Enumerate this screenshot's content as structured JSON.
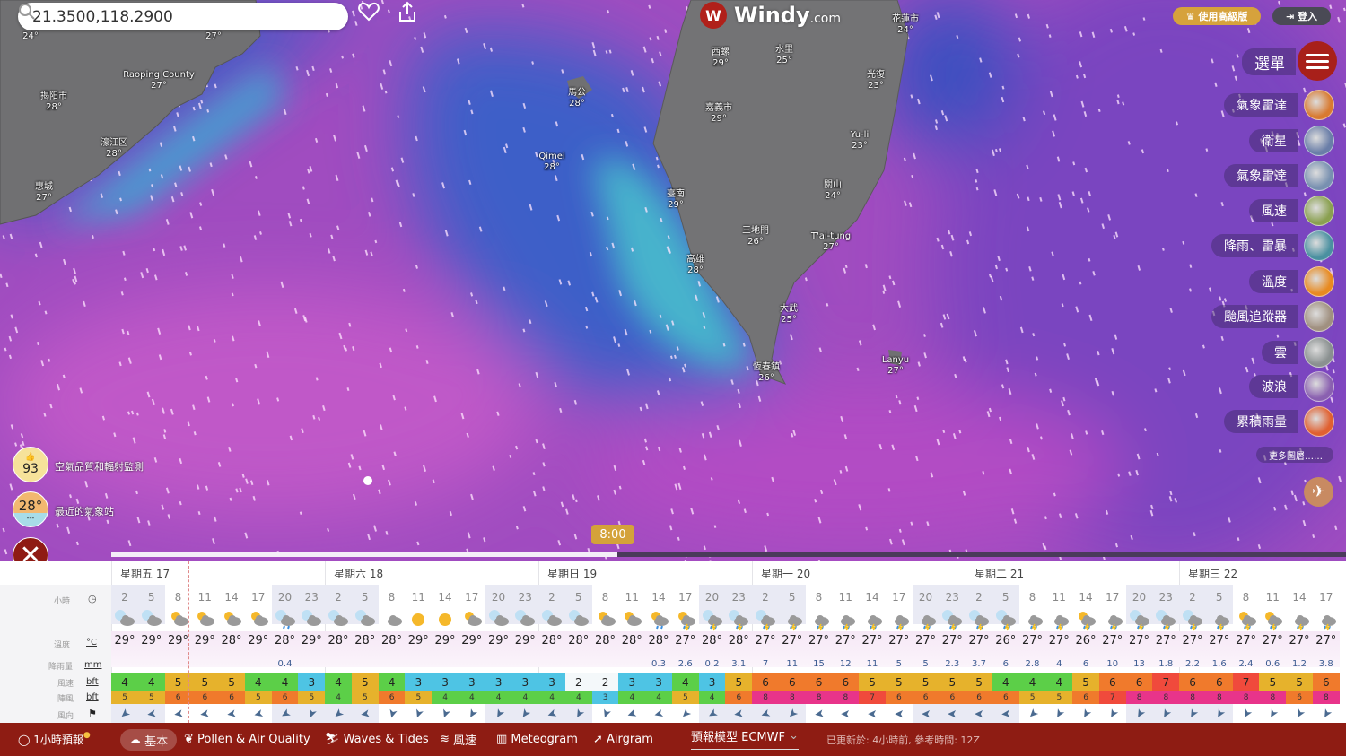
{
  "search": {
    "value": "21.3500,118.2900"
  },
  "logo": {
    "name": "Windy",
    "suffix": "com"
  },
  "header": {
    "premium_label": "使用高級版",
    "login_label": "登入"
  },
  "menu": {
    "title": "選單",
    "more_layers": "更多圖層……",
    "items": [
      {
        "label": "氣象雷達",
        "thumb": "#d87a30"
      },
      {
        "label": "衛星",
        "thumb": "#6a7ea8"
      },
      {
        "label": "氣象雷達",
        "thumb": "#7890b0"
      },
      {
        "label": "風速",
        "thumb": "#8aa050"
      },
      {
        "label": "降雨、雷暴",
        "thumb": "#4a90a0"
      },
      {
        "label": "溫度",
        "thumb": "#e88a20"
      },
      {
        "label": "颱風追蹤器",
        "thumb": "#a09080"
      },
      {
        "label": "雲",
        "thumb": "#8a9090"
      },
      {
        "label": "波浪",
        "thumb": "#8a60b0"
      },
      {
        "label": "累積雨量",
        "thumb": "#e06030"
      }
    ]
  },
  "map": {
    "labels": [
      {
        "name": "",
        "temp": "24°"
      },
      {
        "name": "",
        "temp": "27°"
      },
      {
        "name": "Raoping County",
        "temp": "27°"
      },
      {
        "name": "揭阳市",
        "temp": "28°"
      },
      {
        "name": "濠江区",
        "temp": "28°"
      },
      {
        "name": "惠城",
        "temp": "27°"
      },
      {
        "name": "馬公",
        "temp": "28°"
      },
      {
        "name": "Qimei",
        "temp": "28°"
      },
      {
        "name": "西螺",
        "temp": "29°"
      },
      {
        "name": "水里",
        "temp": "25°"
      },
      {
        "name": "嘉義市",
        "temp": "29°"
      },
      {
        "name": "臺南",
        "temp": "29°"
      },
      {
        "name": "花蓮市",
        "temp": "24°"
      },
      {
        "name": "光復",
        "temp": "23°"
      },
      {
        "name": "Yu-li",
        "temp": "23°"
      },
      {
        "name": "關山",
        "temp": "24°"
      },
      {
        "name": "三地門",
        "temp": "26°"
      },
      {
        "name": "T'ai-tung",
        "temp": "27°"
      },
      {
        "name": "高雄",
        "temp": "28°"
      },
      {
        "name": "大武",
        "temp": "25°"
      },
      {
        "name": "恆春鎮",
        "temp": "26°"
      },
      {
        "name": "Lanyu",
        "temp": "27°"
      }
    ]
  },
  "widgets": {
    "air_quality": {
      "value": "93",
      "label": "空氣品質和輻射監測"
    },
    "station": {
      "value": "28°",
      "sub": "---",
      "label": "最近的氣象站"
    }
  },
  "timeline": {
    "current_time": "8:00",
    "progress": 0.41
  },
  "forecast": {
    "row_labels": {
      "hours": "小時",
      "temp": "溫度",
      "temp_unit": "°C",
      "rain": "降雨量",
      "rain_unit": "mm",
      "wind": "風速",
      "wind_unit": "bft",
      "gust": "陣風",
      "gust_unit": "bft",
      "dir": "風向"
    },
    "days": [
      {
        "label": "星期五 17",
        "hours": [
          2,
          5,
          8,
          11,
          14,
          17,
          20,
          23
        ],
        "temps": [
          "29°",
          "29°",
          "29°",
          "29°",
          "28°",
          "29°",
          "28°",
          "29°"
        ],
        "rain": [
          "",
          "",
          "",
          "",
          "",
          "",
          "0.4",
          ""
        ],
        "wind": [
          4,
          4,
          5,
          5,
          5,
          4,
          4,
          3
        ],
        "gust": [
          5,
          5,
          6,
          6,
          6,
          5,
          6,
          5
        ],
        "dir": [
          50,
          80,
          80,
          80,
          80,
          75,
          60,
          20
        ],
        "icons": [
          "mc",
          "mc",
          "sc",
          "sc",
          "sc",
          "sc",
          "mr",
          "mc"
        ]
      },
      {
        "label": "星期六 18",
        "hours": [
          2,
          5,
          8,
          11,
          14,
          17,
          20,
          23
        ],
        "temps": [
          "28°",
          "28°",
          "28°",
          "29°",
          "29°",
          "29°",
          "29°",
          "29°"
        ],
        "rain": [
          "",
          "",
          "",
          "",
          "",
          "",
          "",
          ""
        ],
        "wind": [
          4,
          5,
          4,
          3,
          3,
          3,
          3,
          3
        ],
        "gust": [
          4,
          5,
          6,
          5,
          4,
          4,
          4,
          4
        ],
        "dir": [
          50,
          80,
          15,
          20,
          20,
          30,
          30,
          35
        ],
        "icons": [
          "mc",
          "mc",
          "c",
          "s",
          "s",
          "sc",
          "mc",
          "mc"
        ]
      },
      {
        "label": "星期日 19",
        "hours": [
          2,
          5,
          8,
          11,
          14,
          17,
          20,
          23
        ],
        "temps": [
          "28°",
          "28°",
          "28°",
          "28°",
          "28°",
          "27°",
          "28°",
          "28°"
        ],
        "rain": [
          "",
          "",
          "",
          "",
          "0.3",
          "2.6",
          "0.2",
          "3.1"
        ],
        "wind": [
          3,
          2,
          2,
          3,
          3,
          4,
          3,
          5
        ],
        "gust": [
          4,
          4,
          3,
          4,
          4,
          5,
          4,
          6
        ],
        "dir": [
          70,
          30,
          20,
          70,
          75,
          45,
          60,
          80
        ],
        "icons": [
          "mc",
          "mc",
          "sc",
          "sc",
          "sr",
          "st",
          "mt",
          "mt"
        ]
      },
      {
        "label": "星期一 20",
        "hours": [
          2,
          5,
          8,
          11,
          14,
          17,
          20,
          23
        ],
        "temps": [
          "27°",
          "27°",
          "27°",
          "27°",
          "27°",
          "27°",
          "27°",
          "27°"
        ],
        "rain": [
          "7",
          "11",
          "15",
          "12",
          "11",
          "5",
          "5",
          "2.3"
        ],
        "wind": [
          6,
          6,
          6,
          6,
          5,
          5,
          5,
          5
        ],
        "gust": [
          8,
          8,
          8,
          8,
          7,
          6,
          6,
          6
        ],
        "dir": [
          70,
          45,
          80,
          90,
          90,
          90,
          90,
          90
        ],
        "icons": [
          "mt",
          "t",
          "t",
          "t",
          "t",
          "t",
          "t",
          "mt"
        ]
      },
      {
        "label": "星期二 21",
        "hours": [
          2,
          5,
          8,
          11,
          14,
          17,
          20,
          23
        ],
        "temps": [
          "27°",
          "26°",
          "27°",
          "27°",
          "26°",
          "27°",
          "27°",
          "27°"
        ],
        "rain": [
          "3.7",
          "6",
          "2.8",
          "4",
          "6",
          "10",
          "13",
          "1.8"
        ],
        "wind": [
          5,
          4,
          4,
          4,
          5,
          6,
          6,
          7
        ],
        "gust": [
          6,
          6,
          5,
          5,
          6,
          7,
          8,
          8
        ],
        "dir": [
          90,
          85,
          45,
          30,
          30,
          30,
          30,
          30
        ],
        "icons": [
          "mt",
          "mt",
          "t",
          "t",
          "st",
          "t",
          "mt",
          "mt"
        ]
      },
      {
        "label": "星期三 22",
        "hours": [
          2,
          5,
          8,
          11,
          14,
          17
        ],
        "temps": [
          "27°",
          "27°",
          "27°",
          "27°",
          "27°",
          "27°"
        ],
        "rain": [
          "2.2",
          "1.6",
          "2.4",
          "0.6",
          "1.2",
          "3.8"
        ],
        "wind": [
          6,
          6,
          7,
          5,
          5,
          6
        ],
        "gust": [
          8,
          8,
          8,
          8,
          6,
          8
        ],
        "dir": [
          30,
          30,
          30,
          30,
          30,
          30
        ],
        "icons": [
          "mt",
          "t",
          "st",
          "st",
          "t",
          "t"
        ]
      }
    ]
  },
  "bottom_bar": {
    "hourly": "1小時預報",
    "tabs": [
      {
        "label": "基本",
        "icon": "basic-icon",
        "active": true
      },
      {
        "label": "Pollen & Air Quality",
        "icon": "leaf-icon"
      },
      {
        "label": "Waves & Tides",
        "icon": "surfer-icon"
      },
      {
        "label": "風速",
        "icon": "wind-icon"
      },
      {
        "label": "Meteogram",
        "icon": "chart-icon"
      },
      {
        "label": "Airgram",
        "icon": "airgram-icon"
      }
    ],
    "model_label": "預報模型 ECMWF",
    "updated": "已更新於: 4小時前, 參考時間: 12Z"
  },
  "colors": {
    "brand": "#8e1c13",
    "gold": "#d4a23a",
    "bft": {
      "2": "#f4f8fa",
      "3": "#4ec4e4",
      "4": "#5ccf48",
      "5": "#e6b22c",
      "6": "#f07a2c",
      "7": "#f04a3c",
      "8": "#e8348a"
    }
  }
}
